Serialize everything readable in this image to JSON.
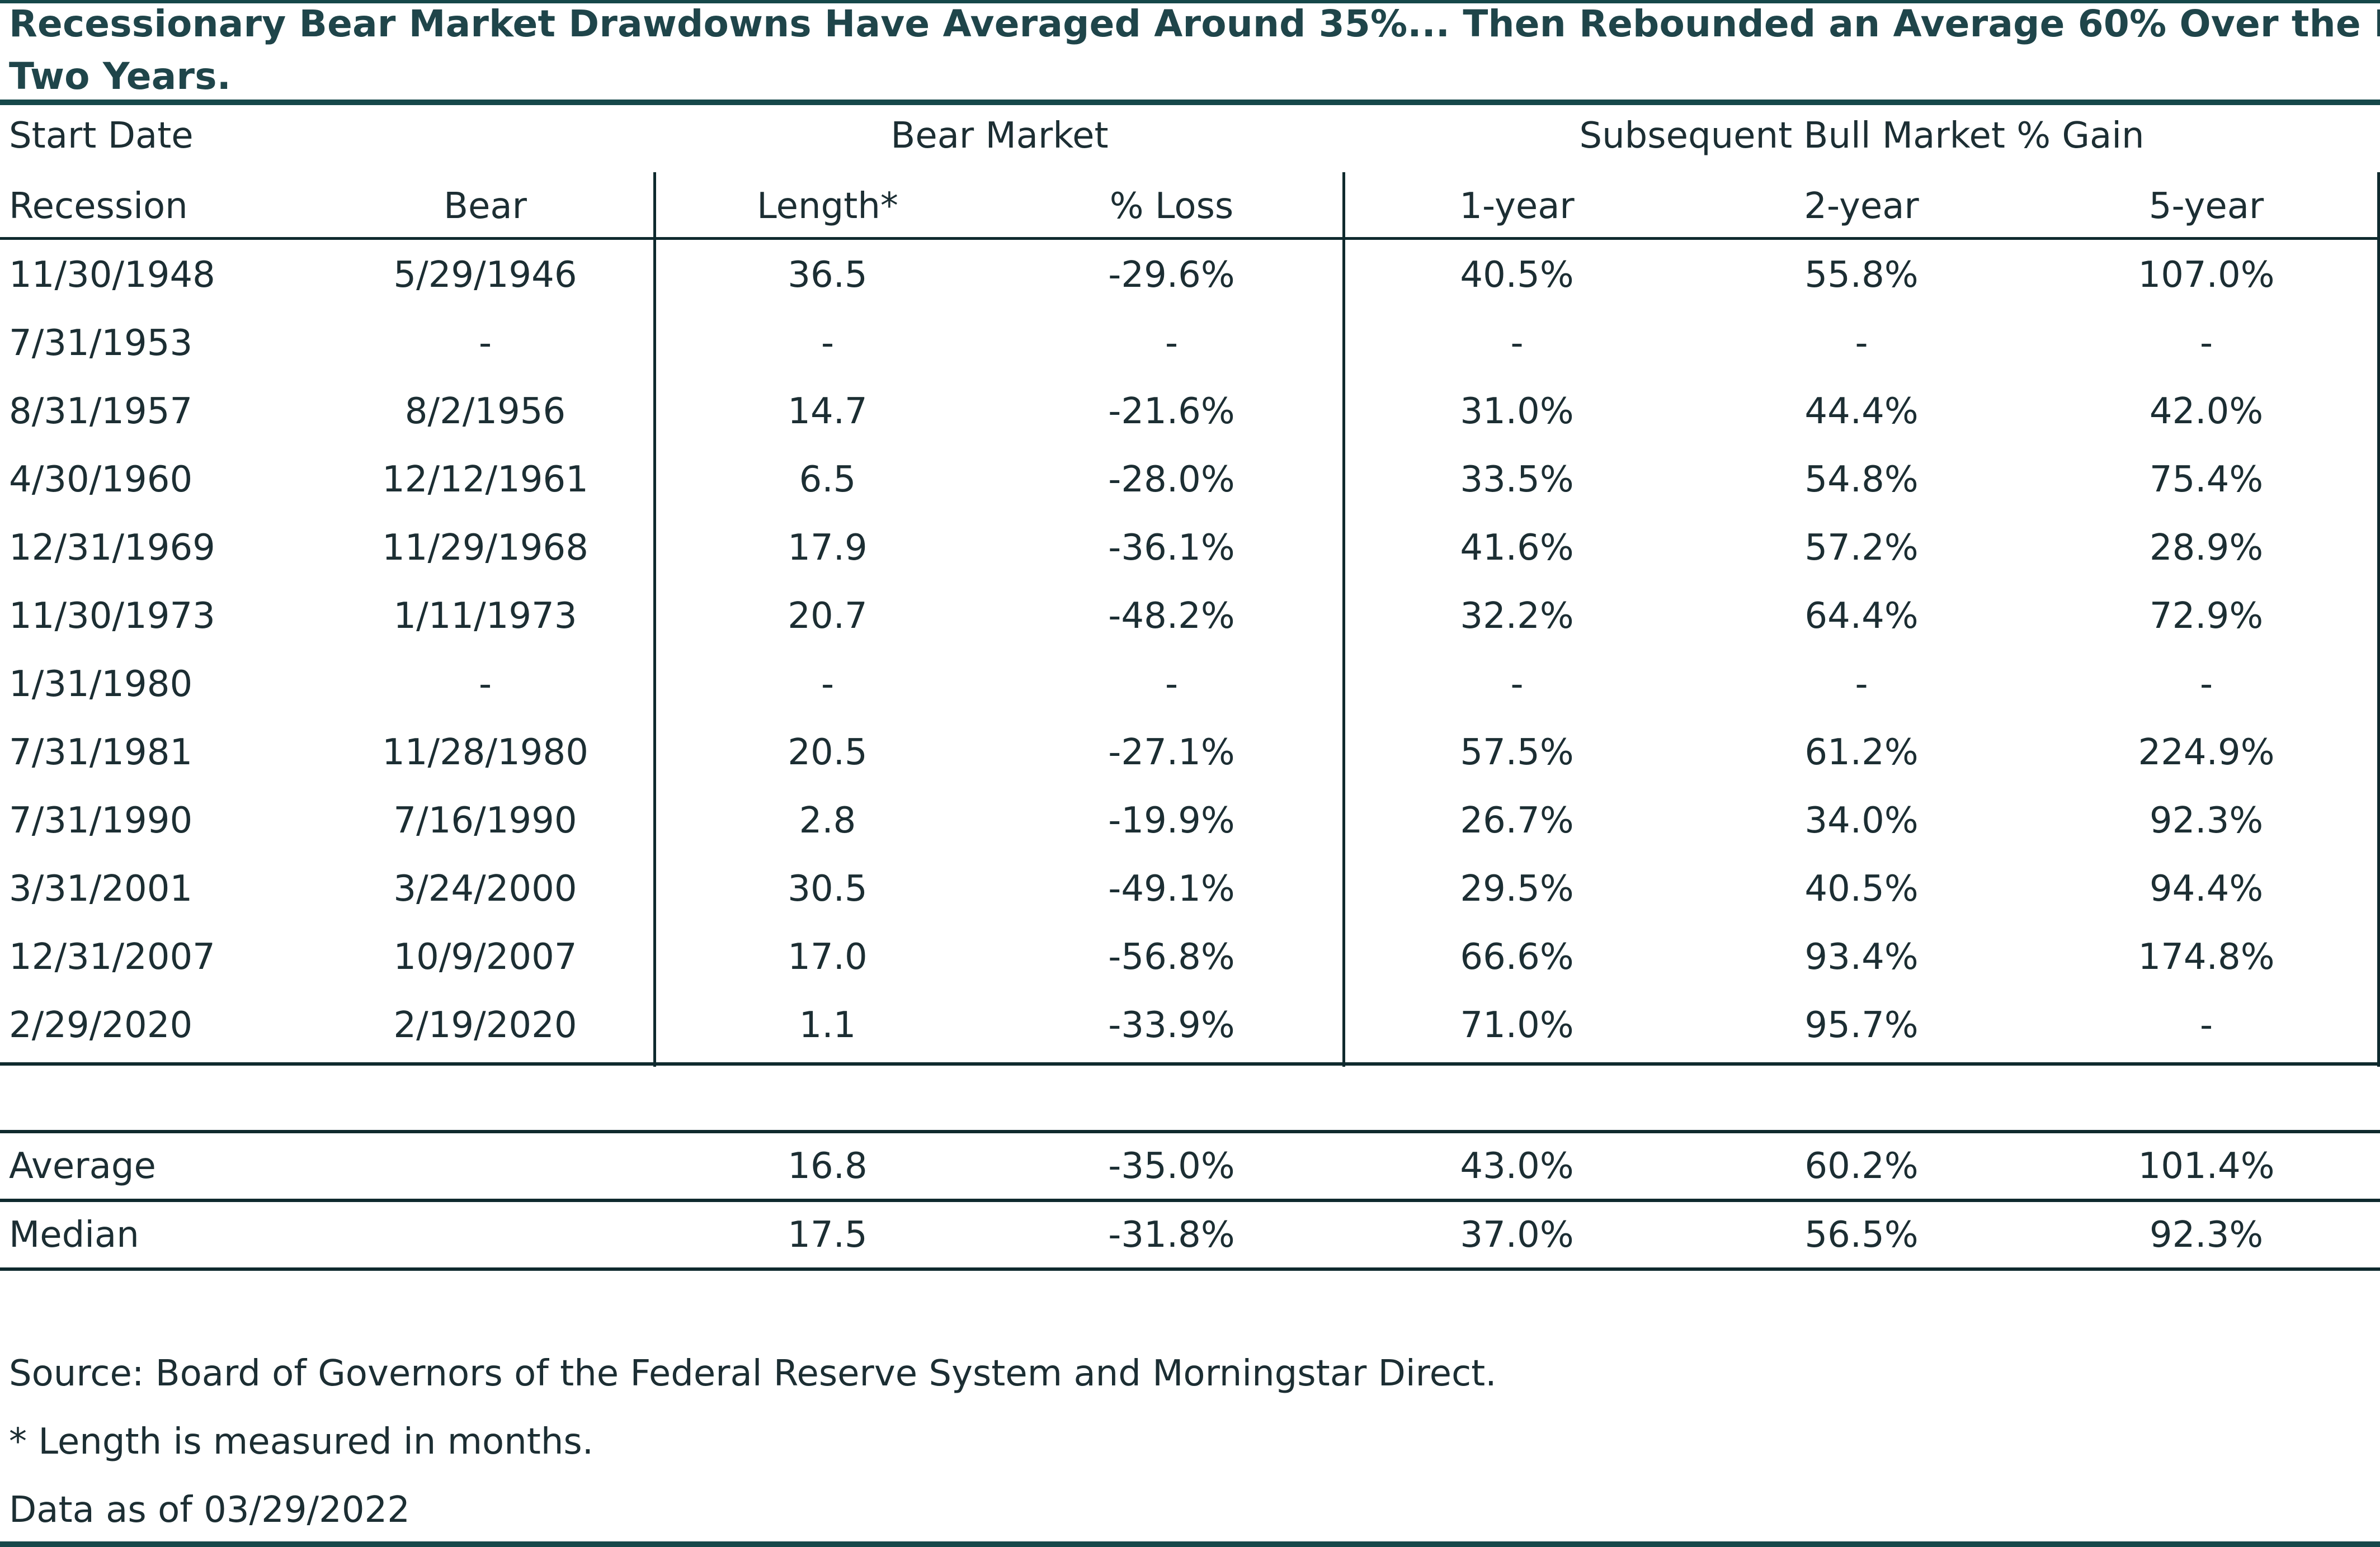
{
  "title": {
    "line1": "Recessionary Bear Market Drawdowns Have Averaged Around 35%... Then Rebounded an Average 60% Over the Next",
    "line2": "Two Years."
  },
  "table": {
    "group_headers": {
      "start_date": "Start Date",
      "bear_market": "Bear Market",
      "subsequent": "Subsequent Bull Market % Gain"
    },
    "columns": [
      "Recession",
      "Bear",
      "Length*",
      "% Loss",
      "1-year",
      "2-year",
      "5-year"
    ],
    "rows": [
      [
        "11/30/1948",
        "5/29/1946",
        "36.5",
        "-29.6%",
        "40.5%",
        "55.8%",
        "107.0%"
      ],
      [
        "7/31/1953",
        "-",
        "-",
        "-",
        "-",
        "-",
        "-"
      ],
      [
        "8/31/1957",
        "8/2/1956",
        "14.7",
        "-21.6%",
        "31.0%",
        "44.4%",
        "42.0%"
      ],
      [
        "4/30/1960",
        "12/12/1961",
        "6.5",
        "-28.0%",
        "33.5%",
        "54.8%",
        "75.4%"
      ],
      [
        "12/31/1969",
        "11/29/1968",
        "17.9",
        "-36.1%",
        "41.6%",
        "57.2%",
        "28.9%"
      ],
      [
        "11/30/1973",
        "1/11/1973",
        "20.7",
        "-48.2%",
        "32.2%",
        "64.4%",
        "72.9%"
      ],
      [
        "1/31/1980",
        "-",
        "-",
        "-",
        "-",
        "-",
        "-"
      ],
      [
        "7/31/1981",
        "11/28/1980",
        "20.5",
        "-27.1%",
        "57.5%",
        "61.2%",
        "224.9%"
      ],
      [
        "7/31/1990",
        "7/16/1990",
        "2.8",
        "-19.9%",
        "26.7%",
        "34.0%",
        "92.3%"
      ],
      [
        "3/31/2001",
        "3/24/2000",
        "30.5",
        "-49.1%",
        "29.5%",
        "40.5%",
        "94.4%"
      ],
      [
        "12/31/2007",
        "10/9/2007",
        "17.0",
        "-56.8%",
        "66.6%",
        "93.4%",
        "174.8%"
      ],
      [
        "2/29/2020",
        "2/19/2020",
        "1.1",
        "-33.9%",
        "71.0%",
        "95.7%",
        "-"
      ]
    ],
    "summary": [
      [
        "Average",
        "",
        "16.8",
        "-35.0%",
        "43.0%",
        "60.2%",
        "101.4%"
      ],
      [
        "Median",
        "",
        "17.5",
        "-31.8%",
        "37.0%",
        "56.5%",
        "92.3%"
      ]
    ]
  },
  "footnotes": {
    "source": "Source: Board of Governors of the Federal Reserve System and Morningstar Direct.",
    "length_note": "* Length is measured in months.",
    "as_of": "Data as of 03/29/2022"
  },
  "colors": {
    "title": "#1f454a",
    "rule": "#0f2a2e",
    "thick_rule": "#16484a",
    "text": "#1c2e33"
  }
}
